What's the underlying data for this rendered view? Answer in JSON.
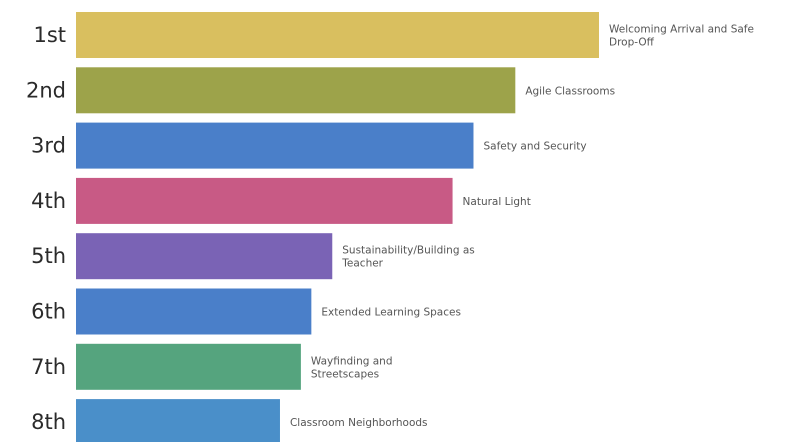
{
  "chart_data": {
    "type": "bar",
    "orientation": "horizontal",
    "categories": [
      "1st",
      "2nd",
      "3rd",
      "4th",
      "5th",
      "6th",
      "7th",
      "8th"
    ],
    "bar_labels": [
      [
        "Welcoming Arrival and Safe",
        "Drop-Off"
      ],
      [
        "Agile Classrooms"
      ],
      [
        "Safety and Security"
      ],
      [
        "Natural Light"
      ],
      [
        "Sustainability/Building as",
        "Teacher"
      ],
      [
        "Extended Learning Spaces"
      ],
      [
        "Wayfinding and",
        "Streetscapes"
      ],
      [
        "Classroom Neighborhoods"
      ]
    ],
    "values": [
      100,
      84,
      76,
      72,
      49,
      45,
      43,
      39
    ],
    "colors": [
      "#d9bf5f",
      "#9da34a",
      "#4a7fc9",
      "#c85a85",
      "#7a63b5",
      "#4a7fc9",
      "#55a47e",
      "#4a8fc9"
    ],
    "xlim": [
      0,
      100
    ],
    "grid": false,
    "legend": "none",
    "title": "",
    "xlabel": "",
    "ylabel": ""
  }
}
